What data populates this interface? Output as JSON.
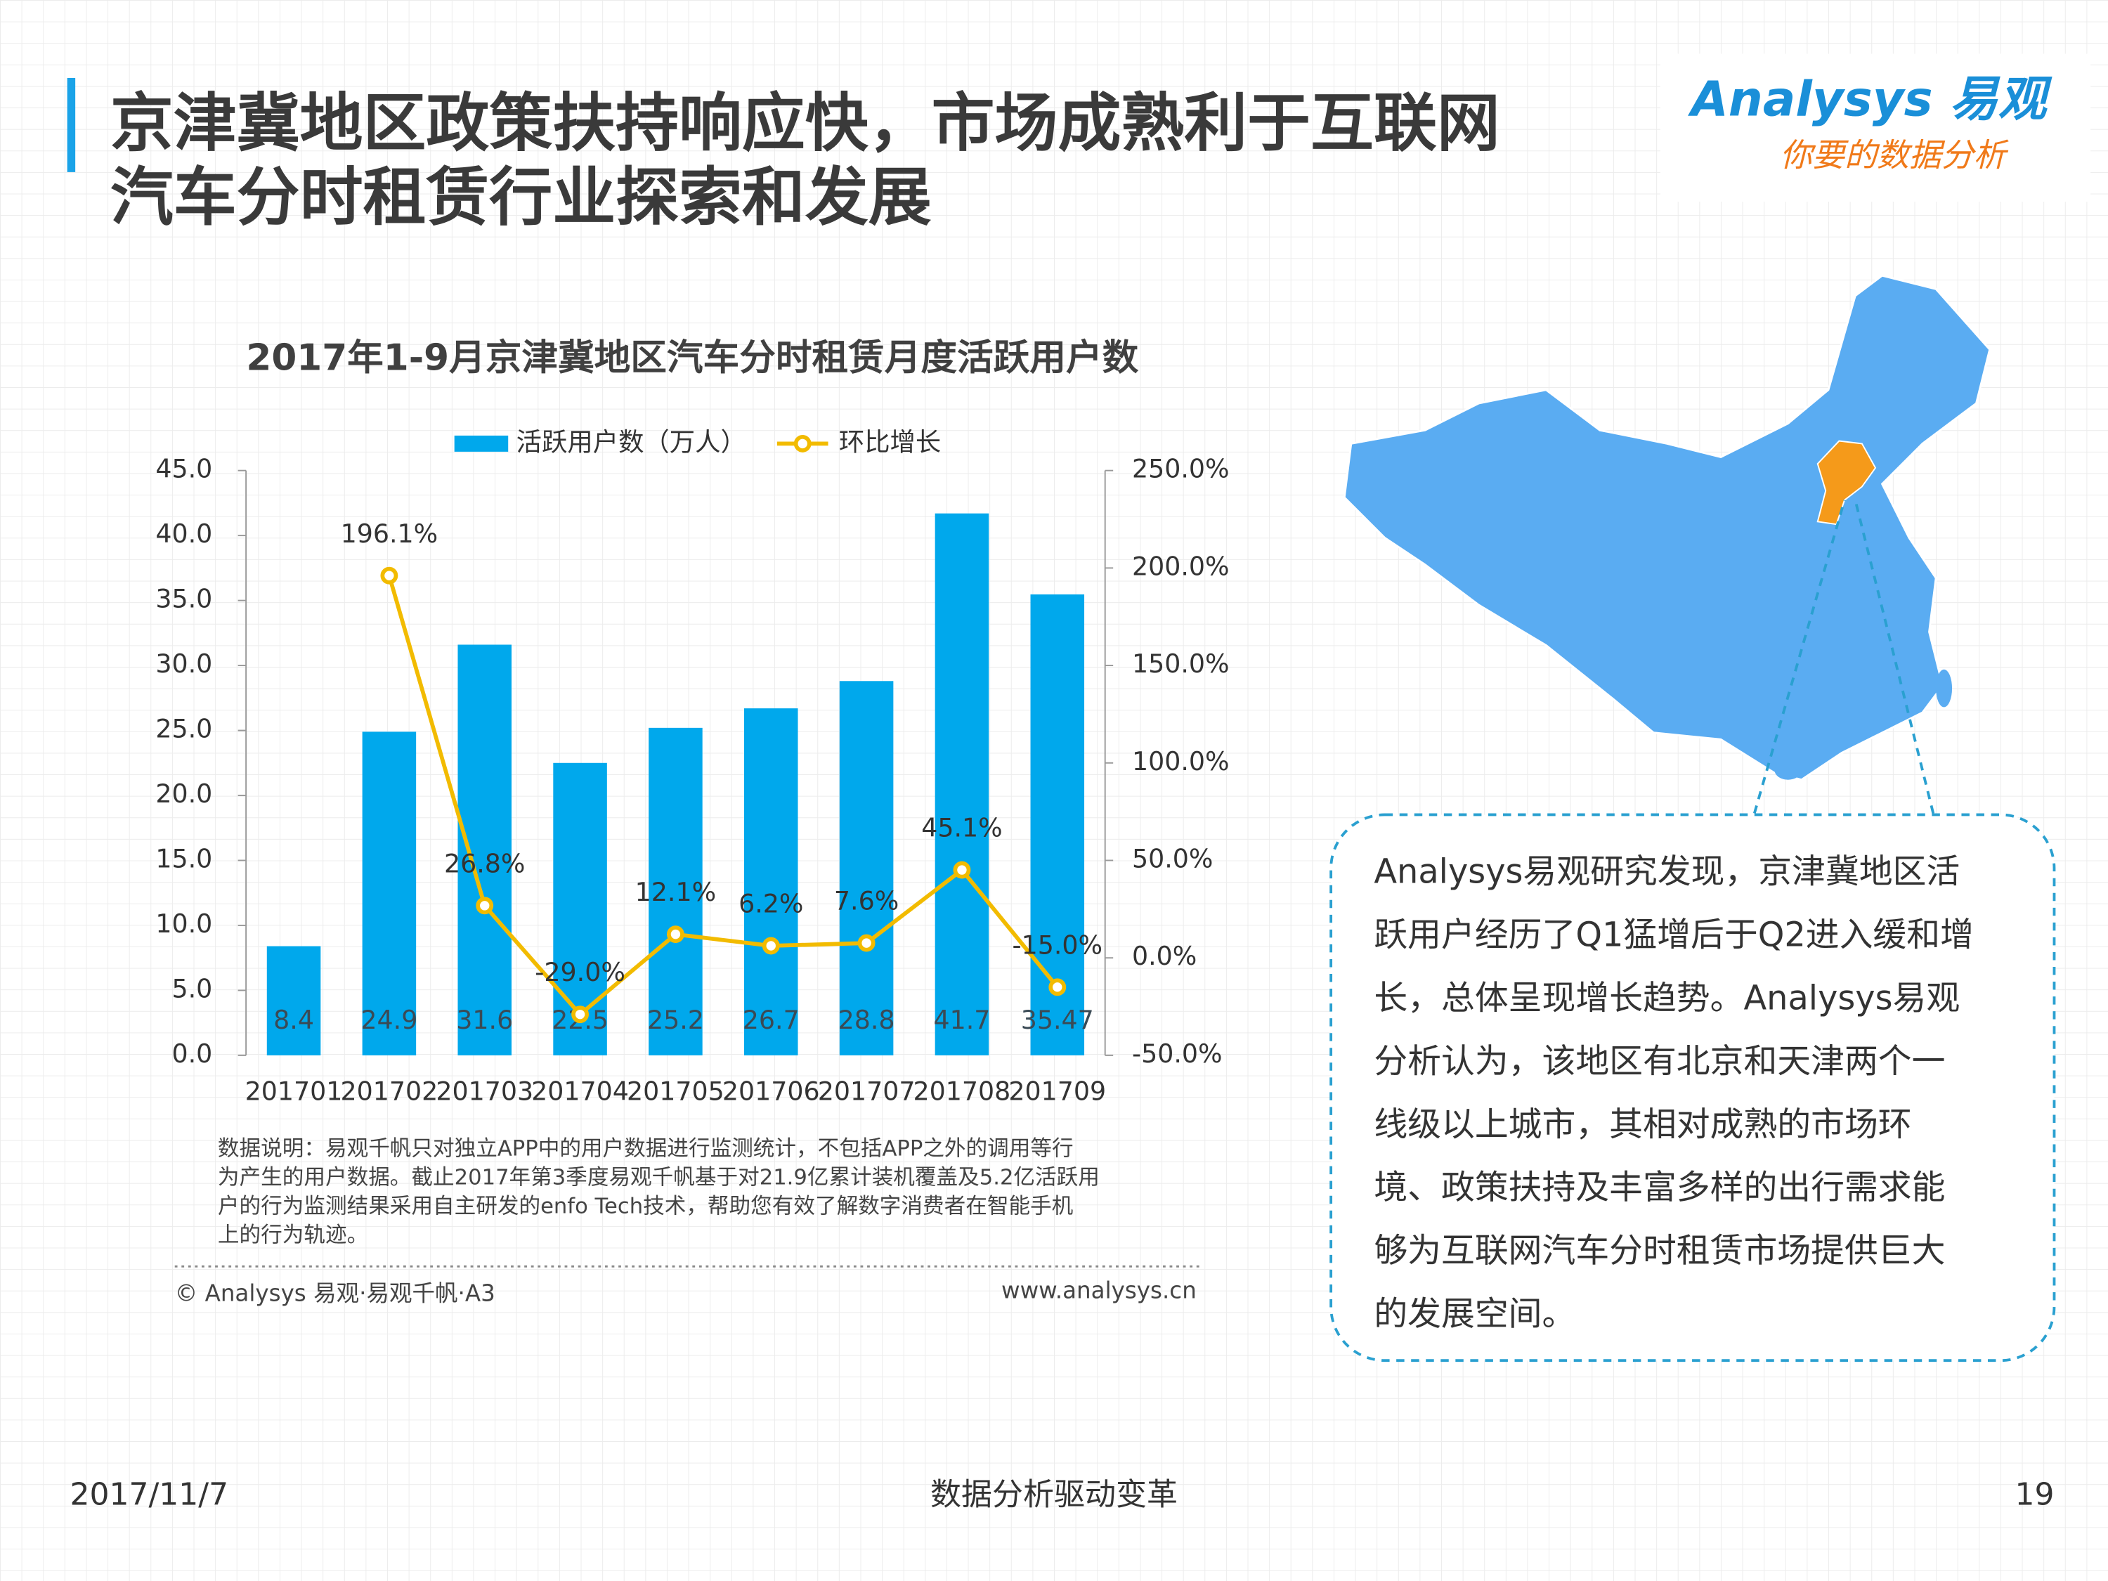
{
  "header": {
    "title": [
      "京津冀地区政策扶持响应快，市场成熟利于互联网",
      "汽车分时租赁行业探索和发展"
    ],
    "logo": "Analysys 易观",
    "logo_slogan": "你要的数据分析"
  },
  "chart_data": {
    "type": "bar",
    "title": "2017年1-9月京津冀地区汽车分时租赁月度活跃用户数",
    "categories": [
      "201701",
      "201702",
      "201703",
      "201704",
      "201705",
      "201706",
      "201707",
      "201708",
      "201709"
    ],
    "series": [
      {
        "name": "活跃用户数（万人）",
        "color": "#00a8ec",
        "values": [
          8.4,
          24.9,
          31.6,
          22.5,
          25.2,
          26.7,
          28.8,
          41.7,
          35.47
        ]
      },
      {
        "name": "环比增长",
        "color": "#f2bb00",
        "type": "line",
        "axis": "y2",
        "values": [
          null,
          196.1,
          26.8,
          -29.0,
          12.1,
          6.2,
          7.6,
          45.1,
          -15.0
        ],
        "value_labels": [
          null,
          "196.1%",
          "26.8%",
          "-29.0%",
          "12.1%",
          "6.2%",
          "7.6%",
          "45.1%",
          "-15.0%"
        ]
      }
    ],
    "ylim": [
      0,
      45
    ],
    "yticks": [
      {
        "value": 0,
        "label": "0.0"
      },
      {
        "value": 5,
        "label": "5.0"
      },
      {
        "value": 10,
        "label": "10.0"
      },
      {
        "value": 15,
        "label": "15.0"
      },
      {
        "value": 20,
        "label": "20.0"
      },
      {
        "value": 25,
        "label": "25.0"
      },
      {
        "value": 30,
        "label": "30.0"
      },
      {
        "value": 35,
        "label": "35.0"
      },
      {
        "value": 40,
        "label": "40.0"
      },
      {
        "value": 45,
        "label": "45.0"
      }
    ],
    "y2lim": [
      -50,
      250
    ],
    "y2ticks": [
      {
        "value": -50,
        "label": "-50.0%"
      },
      {
        "value": 0,
        "label": "0.0%"
      },
      {
        "value": 50,
        "label": "50.0%"
      },
      {
        "value": 100,
        "label": "100.0%"
      },
      {
        "value": 150,
        "label": "150.0%"
      },
      {
        "value": 200,
        "label": "200.0%"
      },
      {
        "value": 250,
        "label": "250.0%"
      }
    ],
    "legend": "top"
  },
  "notes": {
    "lines": [
      "数据说明：易观千帆只对独立APP中的用户数据进行监测统计，不包括APP之外的调用等行",
      "为产生的用户数据。截止2017年第3季度易观千帆基于对21.9亿累计装机覆盖及5.2亿活跃用",
      "户的行为监测结果采用自主研发的enfo Tech技术，帮助您有效了解数字消费者在智能手机",
      "上的行为轨迹。"
    ],
    "source": "© Analysys 易观·易观千帆·A3",
    "website": "www.analysys.cn"
  },
  "callout": {
    "lines": [
      "Analysys易观研究发现，京津冀地区活",
      "跃用户经历了Q1猛增后于Q2进入缓和增",
      "长，总体呈现增长趋势。Analysys易观",
      "分析认为，该地区有北京和天津两个一",
      "线级以上城市，其相对成熟的市场环",
      "境、政策扶持及丰富多样的出行需求能",
      "够为互联网汽车分时租赁市场提供巨大",
      "的发展空间。"
    ]
  },
  "footer": {
    "date": "2017/11/7",
    "center": "数据分析驱动变革",
    "page": "19"
  }
}
